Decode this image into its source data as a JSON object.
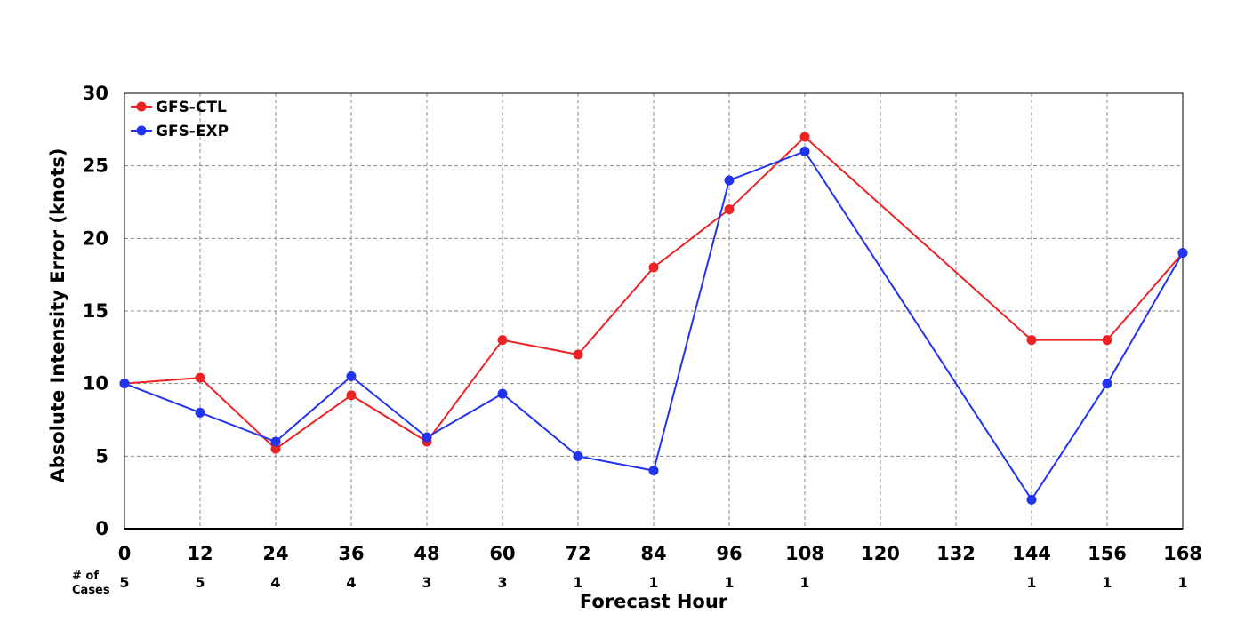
{
  "chart_data": {
    "type": "line",
    "title": "",
    "xlabel": "Forecast Hour",
    "ylabel": "Absolute Intensity Error (knots)",
    "xlim": [
      0,
      168
    ],
    "ylim": [
      0,
      30
    ],
    "x_ticks": [
      0,
      12,
      24,
      36,
      48,
      60,
      72,
      84,
      96,
      108,
      120,
      132,
      144,
      156,
      168
    ],
    "y_ticks": [
      0,
      5,
      10,
      15,
      20,
      25,
      30
    ],
    "grid": true,
    "legend_position": "top-left",
    "series": [
      {
        "name": "GFS-CTL",
        "color": "#ee2222",
        "x": [
          0,
          12,
          24,
          36,
          48,
          60,
          72,
          84,
          96,
          108,
          144,
          156,
          168
        ],
        "y": [
          10,
          10.4,
          5.5,
          9.2,
          6,
          13,
          12,
          18,
          22,
          27,
          13,
          13,
          19
        ]
      },
      {
        "name": "GFS-EXP",
        "color": "#2233ee",
        "x": [
          0,
          12,
          24,
          36,
          48,
          60,
          72,
          84,
          96,
          108,
          144,
          156,
          168
        ],
        "y": [
          10,
          8,
          6,
          10.5,
          6.3,
          9.3,
          5,
          4,
          24,
          26,
          2,
          10,
          19
        ]
      }
    ],
    "cases": {
      "label_line1": "# of",
      "label_line2": "Cases",
      "x": [
        0,
        12,
        24,
        36,
        48,
        60,
        72,
        84,
        96,
        108,
        144,
        156,
        168
      ],
      "values": [
        "5",
        "5",
        "4",
        "4",
        "3",
        "3",
        "1",
        "1",
        "1",
        "1",
        "1",
        "1",
        "1"
      ]
    }
  }
}
